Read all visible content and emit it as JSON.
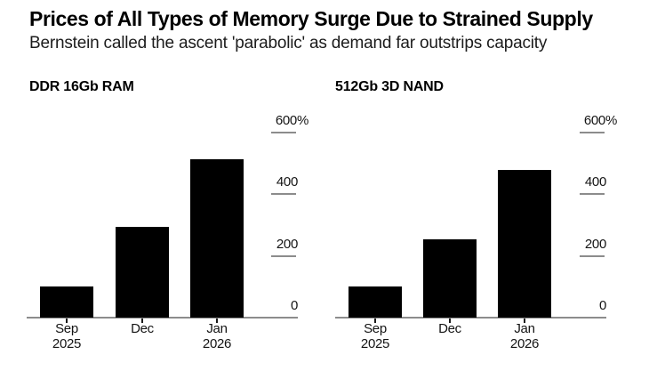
{
  "header": {
    "title": "Prices of All Types of Memory Surge Due to Strained Supply",
    "subtitle": "Bernstein called the ascent 'parabolic' as demand far outstrips capacity"
  },
  "colors": {
    "background": "#ffffff",
    "bar": "#000000",
    "axis_line": "#8c8c8c",
    "tick_line": "#8c8c8c",
    "xtick_mark": "#1a1a1a",
    "text": "#000000",
    "tick_text": "#141414"
  },
  "chart_data": [
    {
      "type": "bar",
      "title": "DDR 16Gb RAM",
      "categories": [
        [
          "Sep",
          "2025"
        ],
        [
          "Dec"
        ],
        [
          "Jan",
          "2026"
        ]
      ],
      "values": [
        100,
        295,
        515
      ],
      "ylabel": "",
      "xlabel": "",
      "unit": "%",
      "ylim": [
        0,
        600
      ],
      "yticks": [
        600,
        400,
        200,
        0
      ],
      "ytick_labels": [
        "600%",
        "400",
        "200",
        "0"
      ],
      "axis_side": "right",
      "grid": false,
      "legend": "none"
    },
    {
      "type": "bar",
      "title": "512Gb 3D NAND",
      "categories": [
        [
          "Sep",
          "2025"
        ],
        [
          "Dec"
        ],
        [
          "Jan",
          "2026"
        ]
      ],
      "values": [
        100,
        255,
        480
      ],
      "ylabel": "",
      "xlabel": "",
      "unit": "%",
      "ylim": [
        0,
        600
      ],
      "yticks": [
        600,
        400,
        200,
        0
      ],
      "ytick_labels": [
        "600%",
        "400",
        "200",
        "0"
      ],
      "axis_side": "right",
      "grid": false,
      "legend": "none"
    }
  ]
}
